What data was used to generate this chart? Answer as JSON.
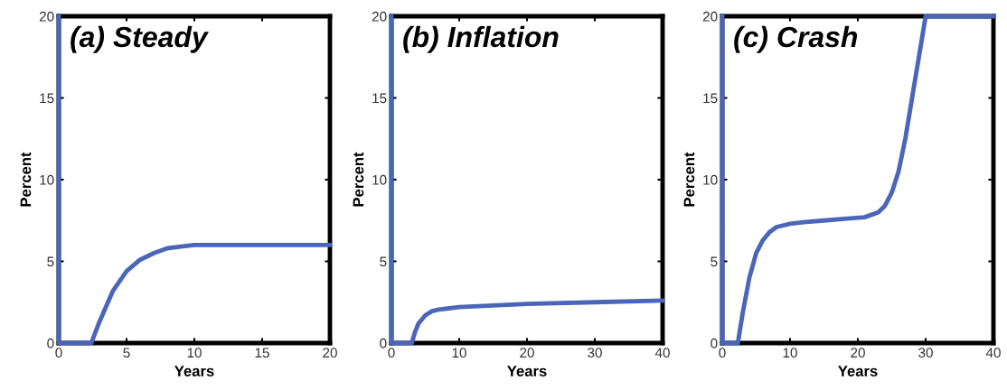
{
  "chart_data": [
    {
      "type": "line",
      "title": "(a) Steady",
      "xlabel": "Years",
      "ylabel": "Percent",
      "xlim": [
        0,
        20
      ],
      "ylim": [
        0,
        20
      ],
      "xticks": [
        0,
        5,
        10,
        15,
        20
      ],
      "yticks": [
        0,
        5,
        10,
        15,
        20
      ],
      "grid": false,
      "legend": false,
      "series": [
        {
          "color": "#4a66b8",
          "x": [
            0,
            0,
            2.4,
            3,
            4,
            5,
            6,
            7,
            8,
            9,
            10,
            12,
            15,
            20
          ],
          "values": [
            20,
            0,
            0,
            1.3,
            3.2,
            4.4,
            5.1,
            5.5,
            5.8,
            5.9,
            6.0,
            6.0,
            6.0,
            6.0
          ]
        }
      ]
    },
    {
      "type": "line",
      "title": "(b) Inflation",
      "xlabel": "Years",
      "ylabel": "Percent",
      "xlim": [
        0,
        40
      ],
      "ylim": [
        0,
        20
      ],
      "xticks": [
        0,
        10,
        20,
        30,
        40
      ],
      "yticks": [
        0,
        5,
        10,
        15,
        20
      ],
      "grid": false,
      "legend": false,
      "series": [
        {
          "color": "#4a66b8",
          "x": [
            0,
            0,
            3,
            3.5,
            4,
            5,
            6,
            7,
            8,
            10,
            15,
            20,
            30,
            40
          ],
          "values": [
            20,
            0,
            0,
            0.7,
            1.2,
            1.7,
            1.95,
            2.05,
            2.1,
            2.2,
            2.3,
            2.4,
            2.5,
            2.6
          ]
        }
      ]
    },
    {
      "type": "line",
      "title": "(c) Crash",
      "xlabel": "Years",
      "ylabel": "Percent",
      "xlim": [
        0,
        40
      ],
      "ylim": [
        0,
        20
      ],
      "xticks": [
        0,
        10,
        20,
        30,
        40
      ],
      "yticks": [
        0,
        5,
        10,
        15,
        20
      ],
      "grid": false,
      "legend": false,
      "series": [
        {
          "color": "#4a66b8",
          "x": [
            0,
            0,
            2.3,
            3,
            4,
            5,
            6,
            7,
            8,
            10,
            12,
            15,
            18,
            21,
            23,
            24,
            25,
            26,
            27,
            28,
            29,
            30,
            40
          ],
          "values": [
            20,
            0,
            0,
            1.8,
            4,
            5.5,
            6.3,
            6.8,
            7.1,
            7.3,
            7.4,
            7.5,
            7.6,
            7.7,
            8.0,
            8.4,
            9.2,
            10.5,
            12.5,
            15,
            17.5,
            20,
            20
          ]
        }
      ]
    }
  ]
}
